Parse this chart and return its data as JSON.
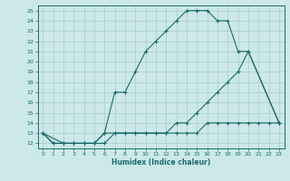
{
  "xlabel": "Humidex (Indice chaleur)",
  "background_color": "#cce8e8",
  "grid_color": "#aacccc",
  "line_color": "#1a6b6b",
  "xlim": [
    -0.5,
    23.5
  ],
  "ylim": [
    11.5,
    25.5
  ],
  "xticks": [
    0,
    1,
    2,
    3,
    4,
    5,
    6,
    7,
    8,
    9,
    10,
    11,
    12,
    13,
    14,
    15,
    16,
    17,
    18,
    19,
    20,
    21,
    22,
    23
  ],
  "yticks": [
    12,
    13,
    14,
    15,
    16,
    17,
    18,
    19,
    20,
    21,
    22,
    23,
    24,
    25
  ],
  "line1_x": [
    0,
    1,
    2,
    3,
    4,
    5,
    6,
    7,
    8,
    9,
    10,
    11,
    12,
    13,
    14,
    15,
    16,
    17,
    18,
    19,
    20,
    21,
    22,
    23
  ],
  "line1_y": [
    13,
    12,
    12,
    12,
    12,
    12,
    12,
    13,
    13,
    13,
    13,
    13,
    13,
    13,
    13,
    13,
    14,
    14,
    14,
    14,
    14,
    14,
    14,
    14
  ],
  "line2_x": [
    0,
    1,
    2,
    3,
    4,
    5,
    6,
    7,
    8,
    9,
    10,
    11,
    12,
    13,
    14,
    15,
    16,
    17,
    18,
    19,
    20,
    23
  ],
  "line2_y": [
    13,
    12,
    12,
    12,
    12,
    12,
    13,
    17,
    17,
    19,
    21,
    22,
    23,
    24,
    25,
    25,
    25,
    24,
    24,
    21,
    21,
    14
  ],
  "line3_x": [
    0,
    2,
    3,
    4,
    5,
    6,
    7,
    8,
    9,
    10,
    11,
    12,
    13,
    14,
    15,
    16,
    17,
    18,
    19,
    20,
    23
  ],
  "line3_y": [
    13,
    12,
    12,
    12,
    12,
    13,
    13,
    13,
    13,
    13,
    13,
    13,
    14,
    14,
    15,
    16,
    17,
    18,
    19,
    21,
    14
  ]
}
